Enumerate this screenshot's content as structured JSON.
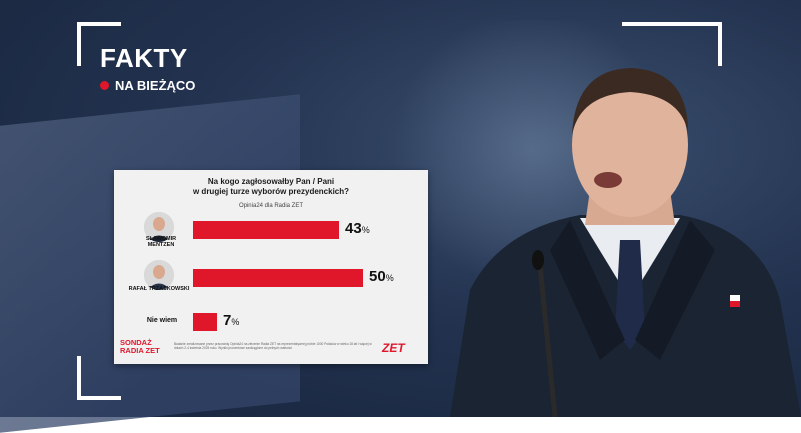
{
  "brand": {
    "title": "FAKTY",
    "subtitle": "NA BIEŻĄCO"
  },
  "colors": {
    "accent": "#e0162b"
  },
  "chart_data": {
    "type": "bar",
    "orientation": "horizontal",
    "title": "Na kogo zagłosowałby Pan / Pani\nw drugiej turze wyborów prezydenckich?",
    "subtitle": "Opinia24 dla Radia ZET",
    "categories": [
      "SŁAWOMIR MENTZEN",
      "RAFAŁ TRZASKOWSKI",
      "Nie wiem"
    ],
    "values": [
      43,
      50,
      7
    ],
    "value_suffix": "%",
    "xlim": [
      0,
      50
    ],
    "grid": false,
    "footer_logo": "SONDAŻ RADIA ZET",
    "footer_note": "Badanie zrealizowane przez pracownię Opinia24 na zlecenie Radia ZET na reprezentatywnej próbie 1000 Polaków w wieku 18 lat i więcej w dniach 2-4 kwietnia 2025 roku. Wyniki procentowe zaokrąglone do pełnych wartości",
    "footer_brand": "ZET"
  }
}
